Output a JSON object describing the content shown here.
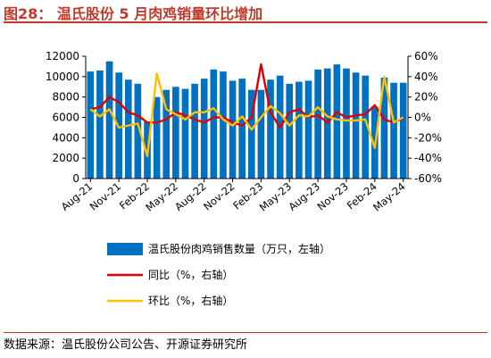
{
  "title": "图28： 温氏股份 5 月肉鸡销量环比增加",
  "source": "数据来源：温氏股份公司公告、开源证券研究所",
  "colors": {
    "bar": "#0070c0",
    "yoy": "#e00000",
    "mom": "#ffc000",
    "title": "#c0392b"
  },
  "chart_data": {
    "type": "bar",
    "categories": [
      "Aug-21",
      "Sep-21",
      "Oct-21",
      "Nov-21",
      "Dec-21",
      "Jan-22",
      "Feb-22",
      "Mar-22",
      "Apr-22",
      "May-22",
      "Jun-22",
      "Jul-22",
      "Aug-22",
      "Sep-22",
      "Oct-22",
      "Nov-22",
      "Dec-22",
      "Jan-23",
      "Feb-23",
      "Mar-23",
      "Apr-23",
      "May-23",
      "Jun-23",
      "Jul-23",
      "Aug-23",
      "Sep-23",
      "Oct-23",
      "Nov-23",
      "Dec-23",
      "Jan-24",
      "Feb-24",
      "Mar-24",
      "Apr-24",
      "May-24"
    ],
    "x_tick_labels": [
      "Aug-21",
      "Nov-21",
      "Feb-22",
      "May-22",
      "Aug-22",
      "Nov-22",
      "Feb-23",
      "May-23",
      "Aug-23",
      "Nov-23",
      "Feb-24",
      "May-24"
    ],
    "series": [
      {
        "name": "温氏股份肉鸡销售数量（万只，左轴）",
        "axis": "left",
        "kind": "bar",
        "values": [
          10500,
          10600,
          11500,
          10400,
          9700,
          9300,
          5600,
          8000,
          8700,
          9000,
          8800,
          9300,
          9800,
          10700,
          10500,
          9600,
          9800,
          8700,
          8700,
          9700,
          10100,
          9300,
          9500,
          9600,
          10700,
          10800,
          11200,
          10800,
          10400,
          10100,
          7000,
          9900,
          9400,
          9400
        ]
      },
      {
        "name": "同比（%，右轴）",
        "axis": "right",
        "kind": "line",
        "values": [
          8,
          10,
          20,
          15,
          5,
          2,
          -5,
          -5,
          -2,
          5,
          2,
          -2,
          -5,
          0,
          0,
          -5,
          -8,
          0,
          52,
          5,
          -10,
          5,
          8,
          0,
          2,
          -5,
          5,
          0,
          2,
          3,
          12,
          -2,
          -5,
          -1
        ]
      },
      {
        "name": "环比（%，右轴）",
        "axis": "right",
        "kind": "line",
        "values": [
          8,
          1,
          8,
          -10,
          -8,
          -6,
          -38,
          43,
          8,
          3,
          -2,
          5,
          5,
          9,
          -2,
          -8,
          1,
          -12,
          0,
          11,
          4,
          -8,
          2,
          1,
          10,
          1,
          -2,
          -3,
          -3,
          -2,
          -30,
          40,
          -5,
          0
        ]
      }
    ],
    "left_axis": {
      "ylim": [
        0,
        12000
      ],
      "ticks": [
        "0",
        "2000",
        "4000",
        "6000",
        "8000",
        "10000",
        "12000"
      ]
    },
    "right_axis": {
      "ylim": [
        -60,
        60
      ],
      "ticks": [
        "-60%",
        "-40%",
        "-20%",
        "0%",
        "20%",
        "40%",
        "60%"
      ]
    },
    "grid": false,
    "legend_position": "bottom"
  }
}
